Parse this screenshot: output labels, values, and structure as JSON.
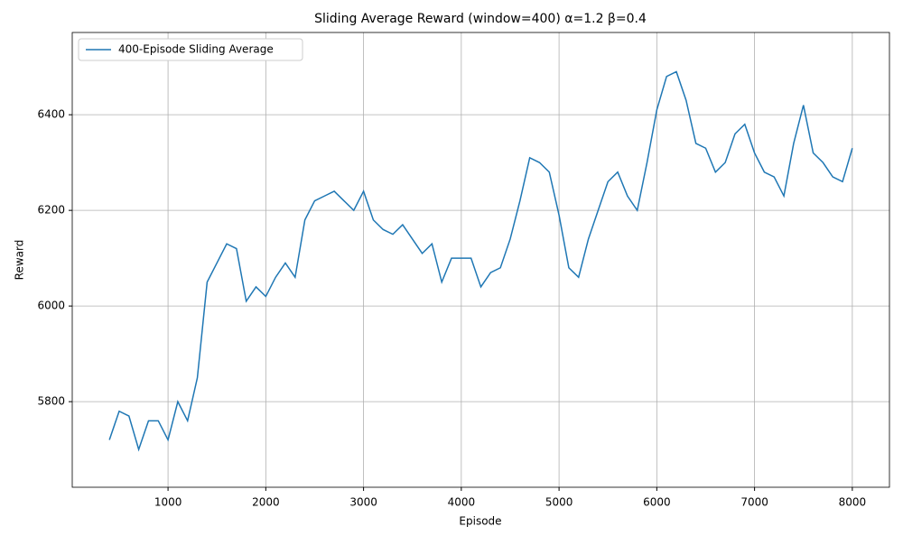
{
  "chart_data": {
    "type": "line",
    "title": "Sliding Average Reward (window=400) α=1.2 β=0.4",
    "x_label": "Episode",
    "y_label": "Reward",
    "x": [
      400,
      500,
      600,
      700,
      800,
      900,
      1000,
      1100,
      1200,
      1300,
      1400,
      1500,
      1600,
      1700,
      1800,
      1900,
      2000,
      2100,
      2200,
      2300,
      2400,
      2500,
      2600,
      2700,
      2800,
      2900,
      3000,
      3100,
      3200,
      3300,
      3400,
      3500,
      3600,
      3700,
      3800,
      3900,
      4000,
      4100,
      4200,
      4300,
      4400,
      4500,
      4600,
      4700,
      4800,
      4900,
      5000,
      5100,
      5200,
      5300,
      5400,
      5500,
      5600,
      5700,
      5800,
      5900,
      6000,
      6100,
      6200,
      6300,
      6400,
      6500,
      6600,
      6700,
      6800,
      6900,
      7000,
      7100,
      7200,
      7300,
      7400,
      7500,
      7600,
      7700,
      7800,
      7900,
      8000
    ],
    "series": [
      {
        "name": "400-Episode Sliding Average",
        "color": "#1f77b4",
        "values": [
          5720,
          5780,
          5770,
          5700,
          5760,
          5760,
          5720,
          5800,
          5760,
          5850,
          6050,
          6090,
          6130,
          6120,
          6010,
          6040,
          6020,
          6060,
          6090,
          6060,
          6180,
          6220,
          6230,
          6240,
          6220,
          6200,
          6240,
          6180,
          6160,
          6150,
          6170,
          6140,
          6110,
          6130,
          6050,
          6100,
          6100,
          6100,
          6040,
          6070,
          6080,
          6140,
          6220,
          6310,
          6300,
          6280,
          6190,
          6080,
          6060,
          6140,
          6200,
          6260,
          6280,
          6230,
          6200,
          6300,
          6410,
          6480,
          6490,
          6430,
          6340,
          6330,
          6280,
          6300,
          6360,
          6380,
          6320,
          6280,
          6270,
          6230,
          6340,
          6420,
          6320,
          6300,
          6270,
          6260,
          6330
        ]
      }
    ],
    "xlim": [
      20,
      8380
    ],
    "ylim": [
      5621,
      6572
    ],
    "xticks": [
      1000,
      2000,
      3000,
      4000,
      5000,
      6000,
      7000,
      8000
    ],
    "yticks": [
      5800,
      6000,
      6200,
      6400
    ],
    "grid": true,
    "legend": "upper left"
  }
}
